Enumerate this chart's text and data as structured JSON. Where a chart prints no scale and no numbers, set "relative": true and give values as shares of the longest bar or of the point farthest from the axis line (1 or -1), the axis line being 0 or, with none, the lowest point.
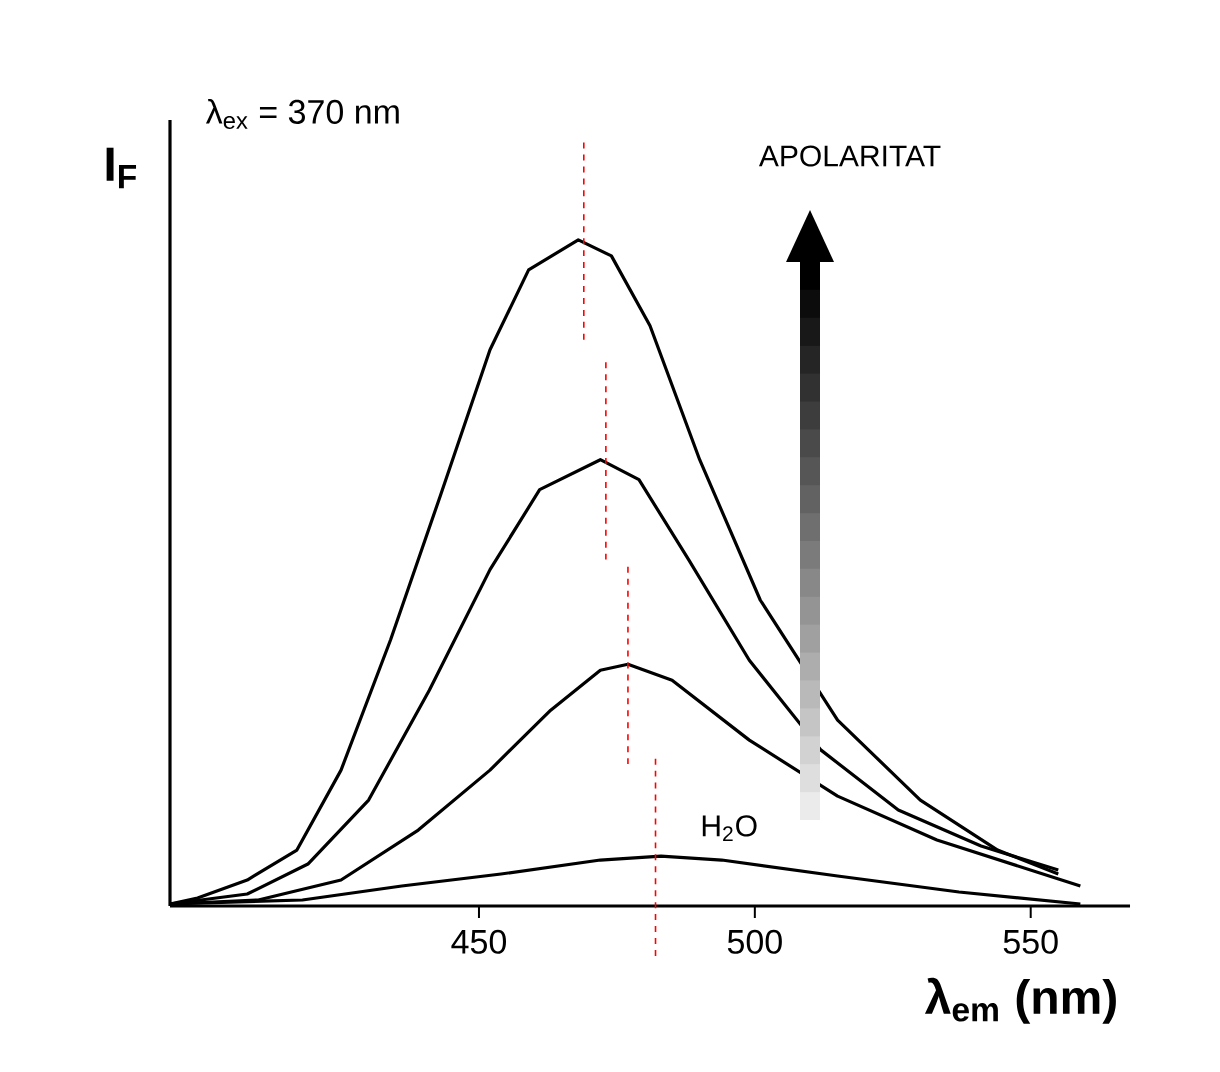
{
  "chart_data": {
    "type": "line",
    "relative": true,
    "xlabel": "**λ$_{em}$ (nm)**",
    "ylabel": "**I$_{F}$**",
    "annotations": [
      "λ$_{ex}$ = 370 nm",
      "APOLARITAT"
    ],
    "xlim": [
      394,
      568
    ],
    "xticks": [
      450,
      500,
      550
    ],
    "grid": false,
    "marker": "none",
    "line_style": "solid",
    "series": [
      {
        "color": "#000000",
        "x": [
          394,
          399,
          408,
          417,
          425,
          434,
          443,
          452,
          459,
          468,
          474,
          481,
          490,
          501,
          515,
          530,
          544,
          555
        ],
        "values": [
          0.003,
          0.012,
          0.039,
          0.084,
          0.204,
          0.4,
          0.616,
          0.835,
          0.955,
          1,
          0.976,
          0.871,
          0.67,
          0.459,
          0.279,
          0.159,
          0.084,
          0.048
        ]
      },
      {
        "color": "#000000",
        "x": [
          394,
          408,
          419,
          430,
          441,
          452,
          461,
          472,
          479,
          488,
          499,
          512,
          526,
          541,
          555
        ],
        "values": [
          0.003,
          0.018,
          0.063,
          0.159,
          0.324,
          0.505,
          0.625,
          0.67,
          0.64,
          0.52,
          0.369,
          0.234,
          0.144,
          0.09,
          0.054
        ]
      },
      {
        "color": "#000000",
        "x": [
          394,
          410,
          425,
          439,
          452,
          463,
          472,
          477,
          485,
          499,
          515,
          533,
          559
        ],
        "values": [
          0.003,
          0.009,
          0.039,
          0.114,
          0.204,
          0.294,
          0.354,
          0.363,
          0.339,
          0.249,
          0.165,
          0.099,
          0.03
        ]
      },
      {
        "name": "H$_{2}$O",
        "color": "#000000",
        "x": [
          394,
          418,
          436,
          454,
          472,
          483,
          494,
          515,
          537,
          559
        ],
        "values": [
          0.003,
          0.009,
          0.03,
          0.048,
          0.069,
          0.075,
          0.069,
          0.045,
          0.021,
          0.003
        ]
      }
    ],
    "ref_lines": [
      {
        "axis": "x",
        "value": 469,
        "color": "#ff0000",
        "line_style": "dashed"
      },
      {
        "axis": "x",
        "value": 473,
        "color": "#ff0000",
        "line_style": "dashed"
      },
      {
        "axis": "x",
        "value": 477,
        "color": "#ff0000",
        "line_style": "dashed"
      },
      {
        "axis": "x",
        "value": 482,
        "color": "#ff0000",
        "line_style": "dashed"
      }
    ]
  }
}
